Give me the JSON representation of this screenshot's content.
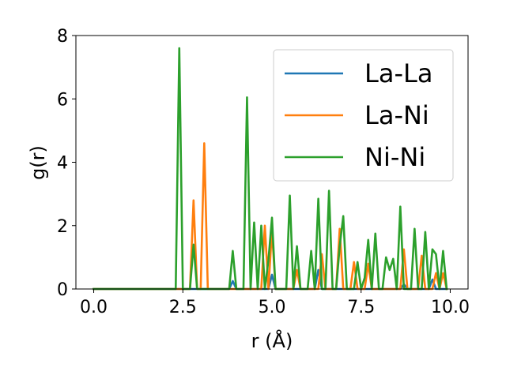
{
  "chart_data": {
    "type": "line",
    "xlabel": "r (Å)",
    "ylabel": "g(r)",
    "xlim": [
      -0.5,
      10.5
    ],
    "ylim": [
      0,
      8
    ],
    "xticks": [
      "0.0",
      "2.5",
      "5.0",
      "7.5",
      "10.0"
    ],
    "xtick_values": [
      0,
      2.5,
      5,
      7.5,
      10
    ],
    "yticks": [
      "0",
      "2",
      "4",
      "6",
      "8"
    ],
    "ytick_values": [
      0,
      2,
      4,
      6,
      8
    ],
    "grid": false,
    "legend_position": "upper-right",
    "series": [
      {
        "name": "La-La",
        "color": "#1f77b4",
        "x": [
          0.0,
          3.8,
          3.9,
          4.0,
          4.9,
          5.0,
          5.1,
          6.2,
          6.3,
          6.4,
          8.6,
          8.7,
          8.8,
          9.4,
          9.5,
          9.6,
          9.9
        ],
        "y": [
          0,
          0,
          0.25,
          0,
          0,
          0.45,
          0,
          0,
          0.6,
          0,
          0,
          0.15,
          0,
          0,
          0.3,
          0,
          0
        ]
      },
      {
        "name": "La-Ni",
        "color": "#ff7f0e",
        "x": [
          0.0,
          2.7,
          2.8,
          2.9,
          3.0,
          3.1,
          3.2,
          4.7,
          4.8,
          4.9,
          5.0,
          5.1,
          5.6,
          5.7,
          5.8,
          6.3,
          6.4,
          6.5,
          6.8,
          6.9,
          7.0,
          7.2,
          7.3,
          7.4,
          7.6,
          7.7,
          7.8,
          8.6,
          8.7,
          8.8,
          9.1,
          9.2,
          9.3,
          9.5,
          9.6,
          9.7,
          9.8,
          9.9
        ],
        "y": [
          0,
          0,
          2.8,
          0,
          0,
          4.6,
          0,
          0,
          2.0,
          0,
          1.85,
          0,
          0,
          0.6,
          0,
          0,
          1.1,
          0,
          0,
          1.9,
          0,
          0,
          0.85,
          0,
          0,
          0.8,
          0,
          0,
          1.25,
          0,
          0,
          1.05,
          0,
          0,
          0.5,
          0,
          0.5,
          0
        ]
      },
      {
        "name": "Ni-Ni",
        "color": "#2ca02c",
        "x": [
          0.0,
          2.3,
          2.4,
          2.5,
          2.7,
          2.8,
          2.9,
          3.8,
          3.9,
          4.0,
          4.2,
          4.3,
          4.4,
          4.5,
          4.6,
          4.7,
          4.8,
          4.9,
          5.0,
          5.1,
          5.4,
          5.5,
          5.6,
          5.7,
          5.8,
          5.9,
          6.0,
          6.1,
          6.2,
          6.3,
          6.4,
          6.5,
          6.6,
          6.7,
          6.8,
          6.9,
          7.0,
          7.1,
          7.2,
          7.3,
          7.4,
          7.5,
          7.6,
          7.7,
          7.8,
          7.9,
          8.0,
          8.1,
          8.2,
          8.3,
          8.4,
          8.5,
          8.6,
          8.7,
          8.8,
          8.9,
          9.0,
          9.1,
          9.2,
          9.3,
          9.4,
          9.5,
          9.6,
          9.7,
          9.8,
          9.9
        ],
        "y": [
          0,
          0,
          7.6,
          0,
          0,
          1.4,
          0,
          0,
          1.2,
          0,
          0,
          6.05,
          0,
          2.1,
          0,
          2.0,
          0,
          0.9,
          2.25,
          0,
          0,
          2.95,
          0,
          1.35,
          0,
          0,
          0,
          1.2,
          0,
          2.85,
          0,
          0,
          3.1,
          0,
          0,
          1.35,
          2.3,
          0,
          0,
          0,
          0.85,
          0,
          0.35,
          1.55,
          0,
          1.75,
          0,
          0,
          1.0,
          0.6,
          0.95,
          0,
          2.6,
          0,
          0,
          0,
          1.9,
          0,
          0,
          1.8,
          0,
          1.25,
          1.1,
          0,
          1.2,
          0
        ]
      }
    ]
  }
}
